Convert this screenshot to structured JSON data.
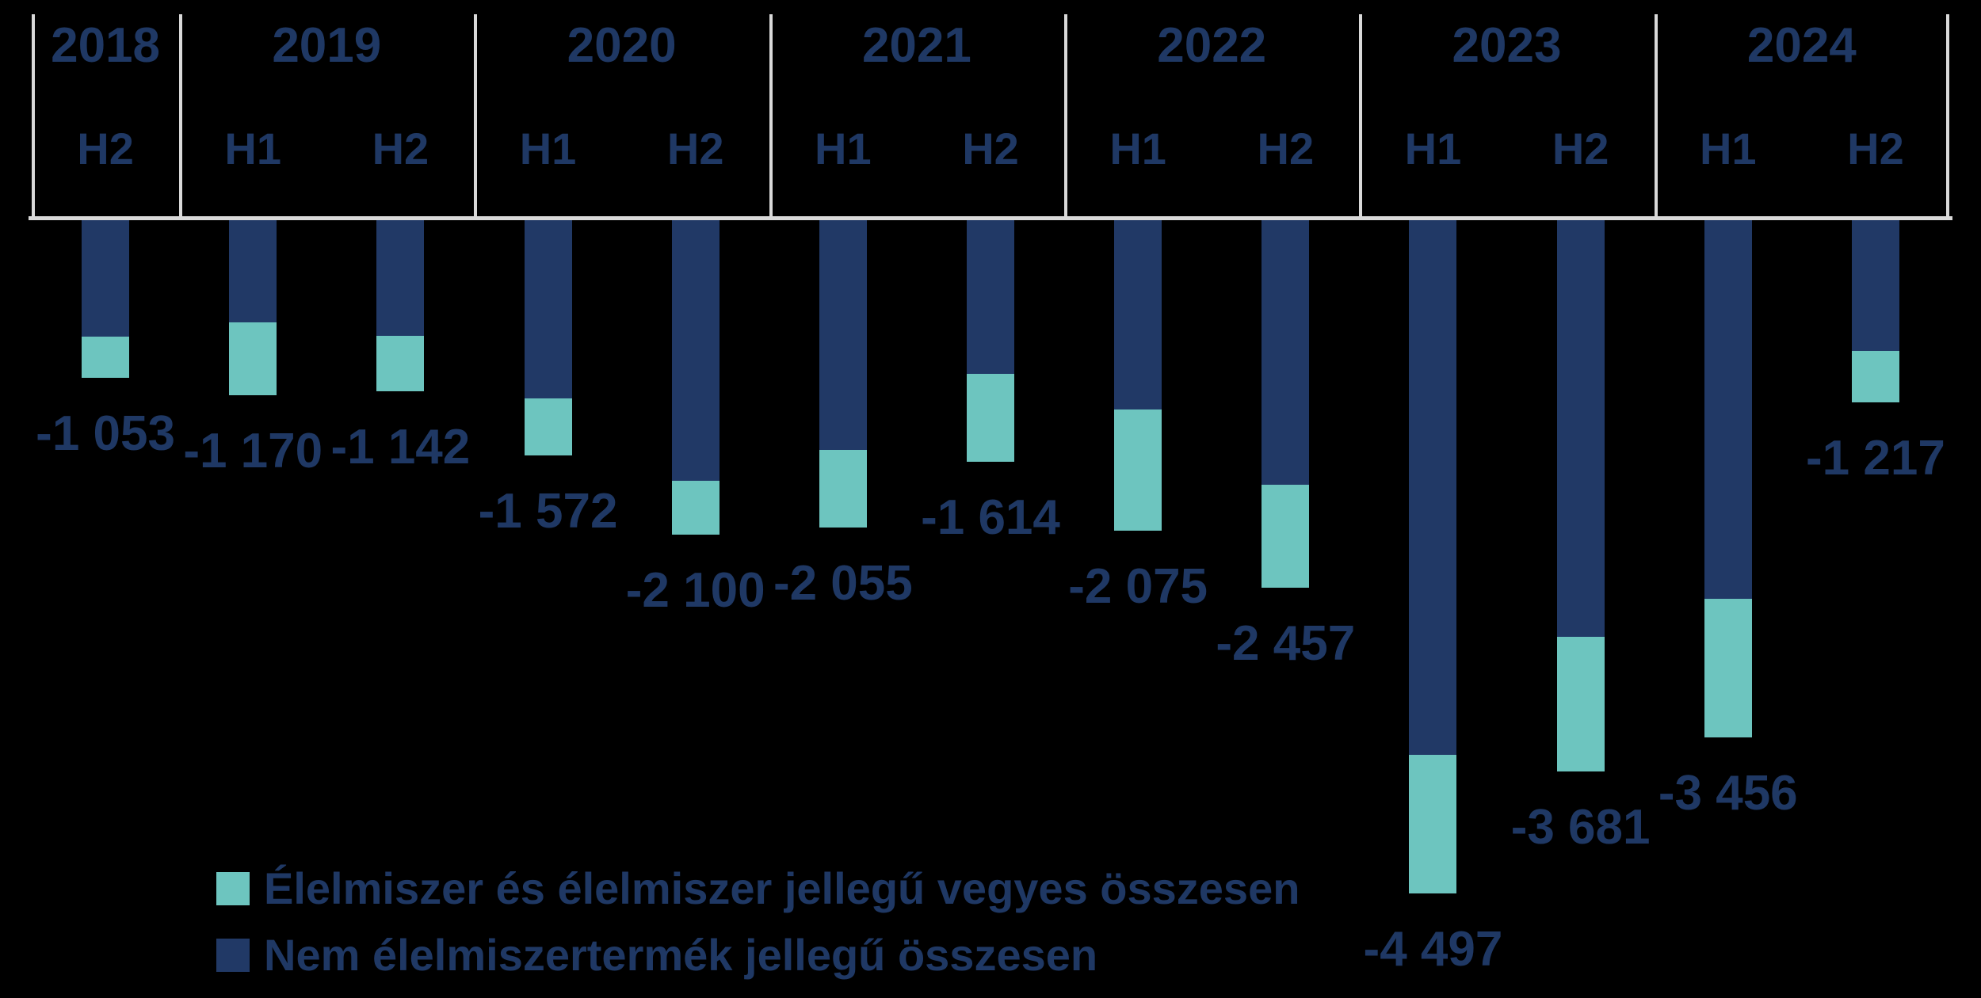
{
  "page": {
    "background_color": "#000000",
    "frame_color": "#D9D9D9",
    "text_color": "#1F3864"
  },
  "chart_data": {
    "type": "bar",
    "stacked": true,
    "orientation": "vertical",
    "title": "",
    "categories": [
      "2018 H2",
      "2019 H1",
      "2019 H2",
      "2020 H1",
      "2020 H2",
      "2021 H1",
      "2021 H2",
      "2022 H1",
      "2022 H2",
      "2023 H1",
      "2023 H2",
      "2024 H1",
      "2024 H2"
    ],
    "groups": [
      {
        "year": "2018",
        "halves": [
          "H2"
        ]
      },
      {
        "year": "2019",
        "halves": [
          "H1",
          "H2"
        ]
      },
      {
        "year": "2020",
        "halves": [
          "H1",
          "H2"
        ]
      },
      {
        "year": "2021",
        "halves": [
          "H1",
          "H2"
        ]
      },
      {
        "year": "2022",
        "halves": [
          "H1",
          "H2"
        ]
      },
      {
        "year": "2023",
        "halves": [
          "H1",
          "H2"
        ]
      },
      {
        "year": "2024",
        "halves": [
          "H1",
          "H2"
        ]
      }
    ],
    "series": [
      {
        "name": "Élelmiszer és élelmiszer jellegű vegyes összesen",
        "color": "#6DC5BF",
        "values": [
          -273,
          -486,
          -372,
          -384,
          -357,
          -523,
          -588,
          -810,
          -690,
          -925,
          -899,
          -926,
          -342
        ]
      },
      {
        "name": "Nem élelmiszertermék jellegű összesen",
        "color": "#213966",
        "values": [
          -780,
          -684,
          -770,
          -1188,
          -1743,
          -1532,
          -1026,
          -1265,
          -1767,
          -3572,
          -2782,
          -2530,
          -875
        ]
      }
    ],
    "totals": [
      -1053,
      -1170,
      -1142,
      -1572,
      -2100,
      -2055,
      -1614,
      -2075,
      -2457,
      -4497,
      -3681,
      -3456,
      -1217
    ],
    "data_labels": [
      "-1 053",
      "-1 170",
      "-1 142",
      "-1 572",
      "-2 100",
      "-2 055",
      "-1 614",
      "-2 075",
      "-2 457",
      "-4 497",
      "-3 681",
      "-3 456",
      "-1 217"
    ],
    "ylim": [
      -4800,
      0
    ],
    "grid": false,
    "legend_position": "bottom-left",
    "data_label_position": "outside-end"
  }
}
